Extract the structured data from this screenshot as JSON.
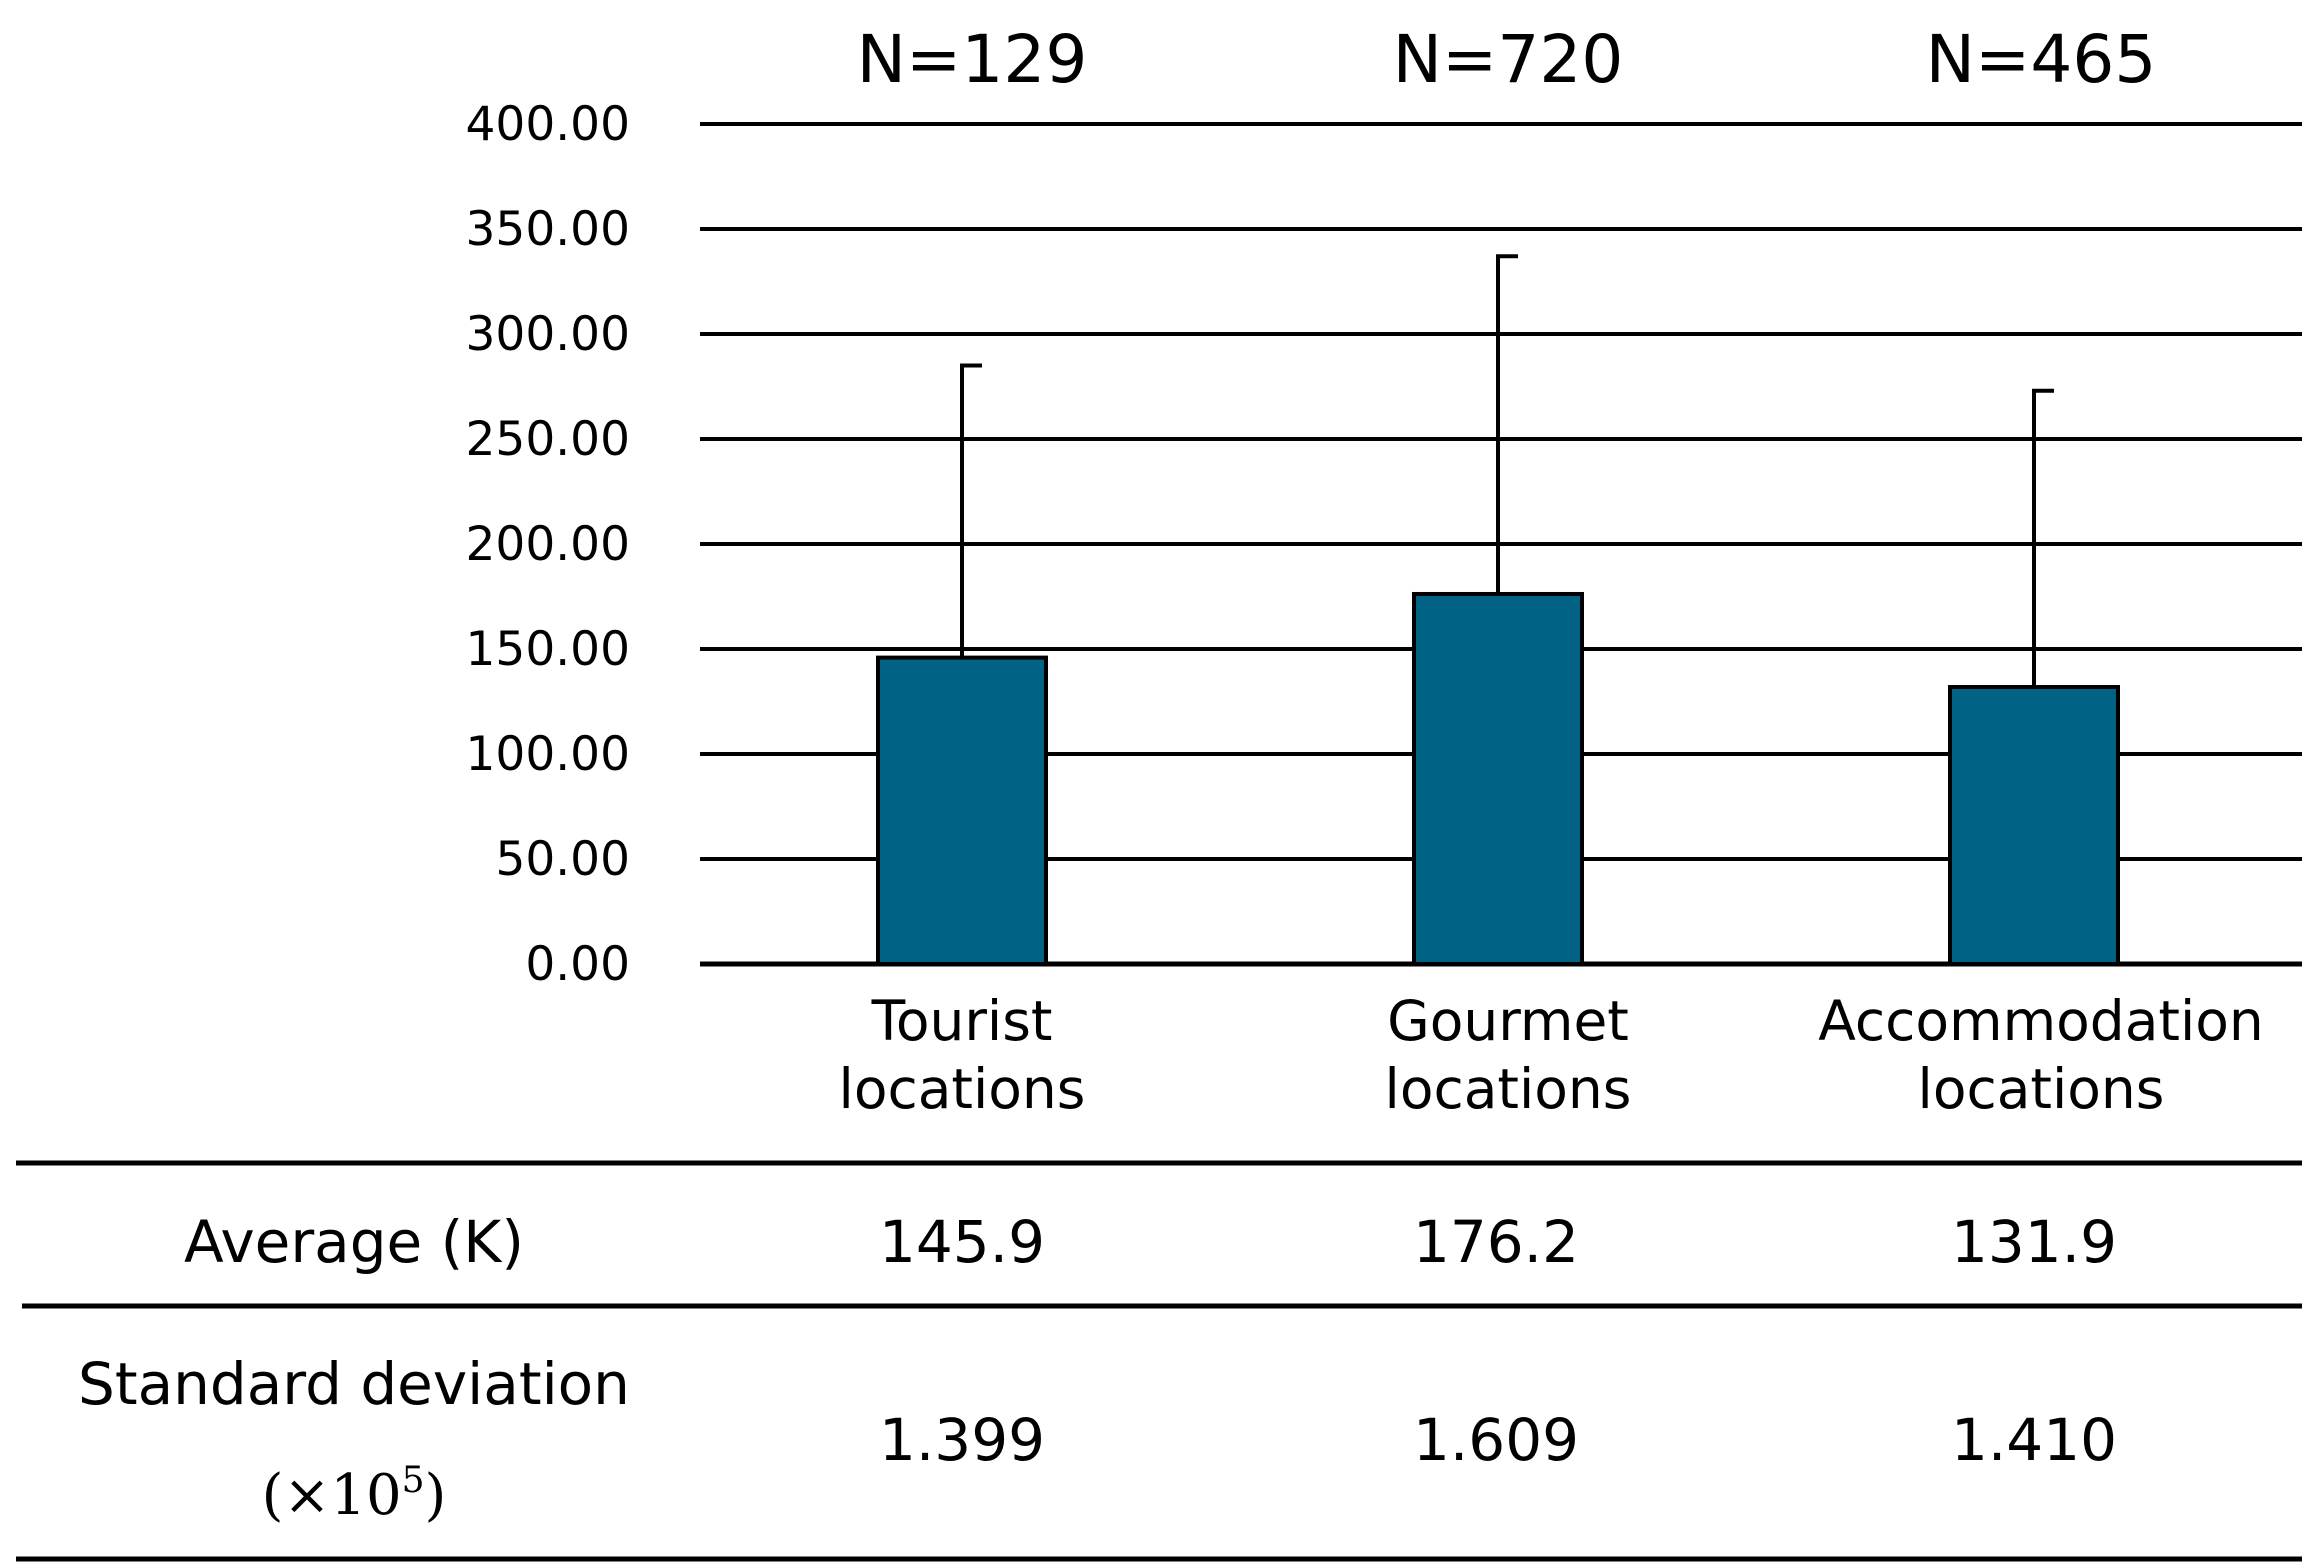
{
  "chart_data": {
    "type": "bar",
    "categories": [
      "Tourist locations",
      "Gourmet locations",
      "Accommodation locations"
    ],
    "category_label_lines": [
      [
        "Tourist",
        "locations"
      ],
      [
        "Gourmet",
        "locations"
      ],
      [
        "Accommodation",
        "locations"
      ]
    ],
    "values": [
      145.9,
      176.2,
      131.9
    ],
    "error_upper": [
      285,
      337,
      273
    ],
    "sample_sizes": [
      "N=129",
      "N=720",
      "N=465"
    ],
    "yticks": [
      "0.00",
      "50.00",
      "100.00",
      "150.00",
      "200.00",
      "250.00",
      "300.00",
      "350.00",
      "400.00"
    ],
    "ylim": [
      0,
      400
    ],
    "grid": true,
    "bar_color": "#006386",
    "title": "",
    "xlabel": "",
    "ylabel": ""
  },
  "table": {
    "rows": [
      {
        "label": "Average (K)",
        "values": [
          "145.9",
          "176.2",
          "131.9"
        ]
      },
      {
        "label": "Standard deviation",
        "label_unit_prefix": "(×10",
        "label_unit_exp": "5",
        "label_unit_suffix": ")",
        "values": [
          "1.399",
          "1.609",
          "1.410"
        ]
      }
    ]
  }
}
